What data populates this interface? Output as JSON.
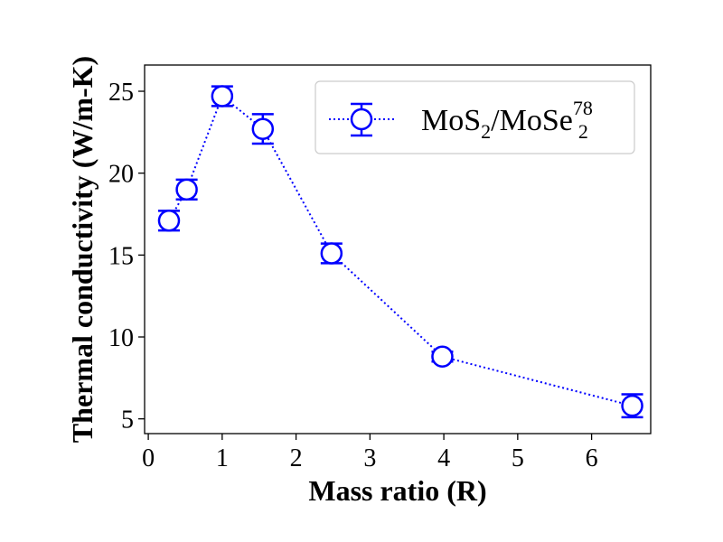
{
  "chart_data": {
    "type": "scatter",
    "xlabel": "Mass ratio (R)",
    "ylabel": "Thermal conductivity (W/m-K)",
    "xlim": [
      -0.05,
      6.8
    ],
    "ylim": [
      4.1,
      26.6
    ],
    "xticks": [
      "0",
      "1",
      "2",
      "3",
      "4",
      "5",
      "6"
    ],
    "yticks": [
      "5",
      "10",
      "15",
      "20",
      "25"
    ],
    "grid": false,
    "legend_position": "top-right",
    "series": [
      {
        "name": "MoS2/MoSe78 2",
        "legend": {
          "base": "MoS",
          "sub1": "2",
          "mid": "/MoSe",
          "sup": "78",
          "sub2": "2"
        },
        "color": "#0000ff",
        "marker": "open-circle",
        "line_style": "dotted",
        "x": [
          0.28,
          0.52,
          1.0,
          1.55,
          2.48,
          3.98,
          6.55
        ],
        "y": [
          17.1,
          19.0,
          24.7,
          22.7,
          15.1,
          8.8,
          5.8
        ],
        "yerr": [
          0.6,
          0.6,
          0.6,
          0.9,
          0.6,
          0.3,
          0.7
        ]
      }
    ]
  }
}
